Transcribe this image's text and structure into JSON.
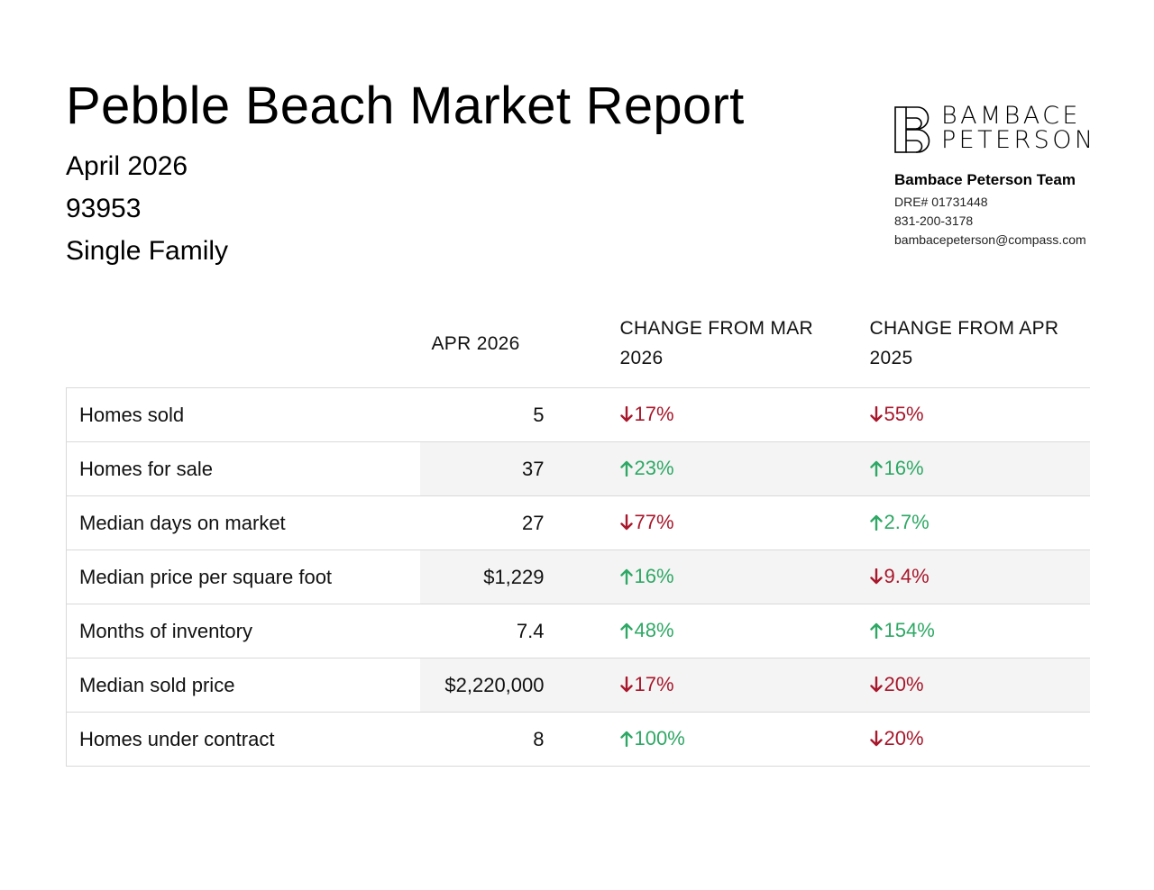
{
  "header": {
    "title": "Pebble Beach Market Report",
    "month": "April 2026",
    "zip": "93953",
    "property_type": "Single Family"
  },
  "brand": {
    "logo_line1": "BAMBACE",
    "logo_line2": "PETERSON",
    "team": "Bambace Peterson Team",
    "dre": "DRE# 01731448",
    "phone": "831-200-3178",
    "email": "bambacepeterson@compass.com"
  },
  "table": {
    "headers": {
      "metric": "",
      "value": "APR 2026",
      "mom": "CHANGE FROM MAR 2026",
      "yoy": "CHANGE FROM APR 2025"
    },
    "rows": [
      {
        "metric": "Homes sold",
        "value": "5",
        "mom": "17%",
        "mom_dir": "down",
        "yoy": "55%",
        "yoy_dir": "down"
      },
      {
        "metric": "Homes for sale",
        "value": "37",
        "mom": "23%",
        "mom_dir": "up",
        "yoy": "16%",
        "yoy_dir": "up"
      },
      {
        "metric": "Median days on market",
        "value": "27",
        "mom": "77%",
        "mom_dir": "down",
        "yoy": "2.7%",
        "yoy_dir": "up"
      },
      {
        "metric": "Median price per square foot",
        "value": "$1,229",
        "mom": "16%",
        "mom_dir": "up",
        "yoy": "9.4%",
        "yoy_dir": "down"
      },
      {
        "metric": "Months of inventory",
        "value": "7.4",
        "mom": "48%",
        "mom_dir": "up",
        "yoy": "154%",
        "yoy_dir": "up"
      },
      {
        "metric": "Median sold price",
        "value": "$2,220,000",
        "mom": "17%",
        "mom_dir": "down",
        "yoy": "20%",
        "yoy_dir": "down"
      },
      {
        "metric": "Homes under contract",
        "value": "8",
        "mom": "100%",
        "mom_dir": "up",
        "yoy": "20%",
        "yoy_dir": "down"
      }
    ]
  },
  "colors": {
    "down": "#a8172b",
    "up": "#2ea865",
    "row_alt_bg": "#f4f4f4",
    "border": "#d9d9d9"
  },
  "icons": {
    "up": "arrow-up-icon",
    "down": "arrow-down-icon"
  }
}
